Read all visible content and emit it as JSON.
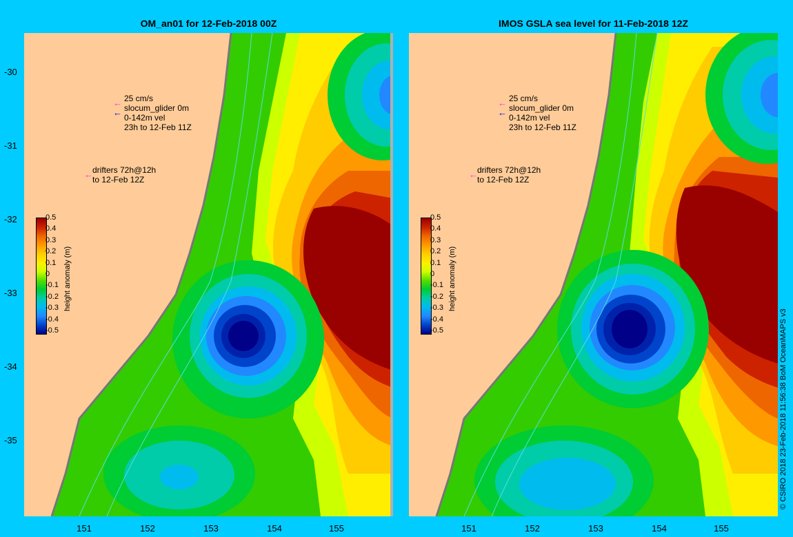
{
  "panels": {
    "left": {
      "title": "OM_an01 for 12-Feb-2018 00Z"
    },
    "right": {
      "title": "IMOS GSLA sea level  for 11-Feb-2018 12Z"
    }
  },
  "axes": {
    "y_ticks": [
      "-30",
      "-31",
      "-32",
      "-33",
      "-34",
      "-35"
    ],
    "x_ticks": [
      "151",
      "152",
      "153",
      "154",
      "155"
    ]
  },
  "legend": {
    "current_scale": "25 cm/s",
    "glider_label": "slocum_glider 0m",
    "velocity_label": "0-142m vel",
    "time_range": "23h to 12-Feb 11Z",
    "drifters_label": "drifters 72h@12h",
    "drifters_time": "to 12-Feb 12Z"
  },
  "colorbar": {
    "title": "height anomaly (m)",
    "ticks": [
      "0.5",
      "0.4",
      "0.3",
      "0.2",
      "0.1",
      "0",
      "-0.1",
      "-0.2",
      "-0.3",
      "-0.4",
      "-0.5"
    ],
    "colors": [
      "#990000",
      "#cc2200",
      "#ee6600",
      "#ff9900",
      "#ffcc00",
      "#ffee00",
      "#ccff00",
      "#55dd00",
      "#00cc33",
      "#00ccaa",
      "#00bbee",
      "#2288ff",
      "#0044cc",
      "#000088"
    ]
  },
  "credit": "© CSIRO 2018   23-Feb-2018 11:56:38 BoM OceanMAPS v3"
}
